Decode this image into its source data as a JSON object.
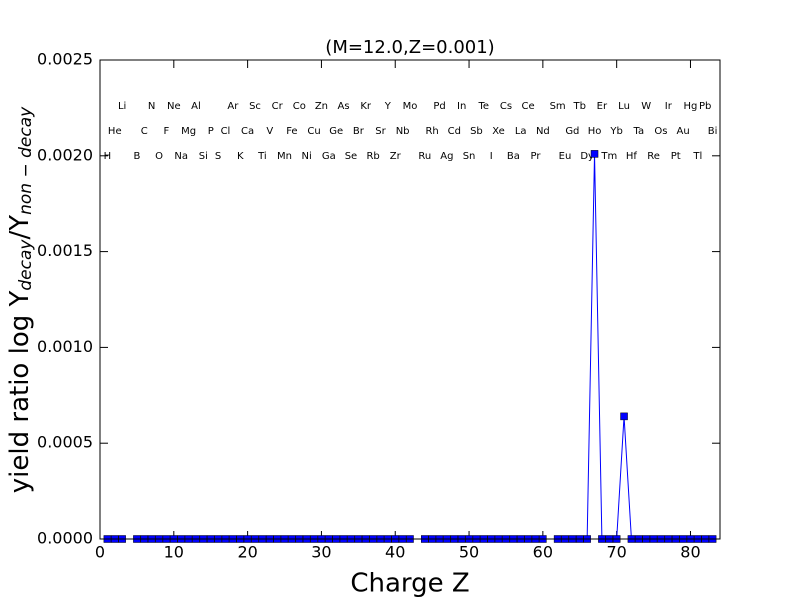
{
  "chart_data": {
    "type": "line",
    "title": "(M=12.0,Z=0.001)",
    "xlabel": "Charge Z",
    "ylabel": {
      "main": "yield ratio log Y",
      "sub1": "decay",
      "mid": "/Y",
      "sub2": "non − decay"
    },
    "x": [
      1,
      2,
      3,
      4,
      5,
      6,
      7,
      8,
      9,
      10,
      11,
      12,
      13,
      14,
      15,
      16,
      17,
      18,
      19,
      20,
      21,
      22,
      23,
      24,
      25,
      26,
      27,
      28,
      29,
      30,
      31,
      32,
      33,
      34,
      35,
      36,
      37,
      38,
      39,
      40,
      41,
      42,
      43,
      44,
      45,
      46,
      47,
      48,
      49,
      50,
      51,
      52,
      53,
      54,
      55,
      56,
      57,
      58,
      59,
      60,
      61,
      62,
      63,
      64,
      65,
      66,
      67,
      68,
      69,
      70,
      71,
      72,
      73,
      74,
      75,
      76,
      77,
      78,
      79,
      80,
      81,
      82,
      83
    ],
    "series": [
      {
        "color": "#0000ff",
        "values": [
          0,
          0,
          0,
          null,
          0,
          0,
          0,
          0,
          0,
          0,
          0,
          0,
          0,
          0,
          0,
          0,
          0,
          0,
          0,
          0,
          0,
          0,
          0,
          0,
          0,
          0,
          0,
          0,
          0,
          0,
          0,
          0,
          0,
          0,
          0,
          0,
          0,
          0,
          0,
          0,
          0,
          0,
          null,
          0,
          0,
          0,
          0,
          0,
          0,
          0,
          0,
          0,
          0,
          0,
          0,
          0,
          0,
          0,
          0,
          0,
          null,
          0,
          0,
          0,
          0,
          0,
          0.00201,
          0,
          0,
          0,
          0.00064,
          0,
          0,
          0,
          0,
          0,
          0,
          0,
          0,
          0,
          0,
          0,
          0
        ]
      }
    ],
    "xlim": [
      0,
      84
    ],
    "xticks": [
      0,
      10,
      20,
      30,
      40,
      50,
      60,
      70,
      80
    ],
    "ylim": [
      0,
      0.0025
    ],
    "yticks": [
      {
        "value": 0,
        "label": "0.0000"
      },
      {
        "value": 0.0005,
        "label": "0.0005"
      },
      {
        "value": 0.001,
        "label": "0.0010"
      },
      {
        "value": 0.0015,
        "label": "0.0015"
      },
      {
        "value": 0.002,
        "label": "0.0020"
      },
      {
        "value": 0.0025,
        "label": "0.0025"
      }
    ],
    "element_labels": [
      {
        "y": 0.00226,
        "labels": [
          {
            "text": "Li",
            "x": 3
          },
          {
            "text": "N",
            "x": 7
          },
          {
            "text": "Ne",
            "x": 10
          },
          {
            "text": "Al",
            "x": 13
          },
          {
            "text": "Ar",
            "x": 18
          },
          {
            "text": "Sc",
            "x": 21
          },
          {
            "text": "Cr",
            "x": 24
          },
          {
            "text": "Co",
            "x": 27
          },
          {
            "text": "Zn",
            "x": 30
          },
          {
            "text": "As",
            "x": 33
          },
          {
            "text": "Kr",
            "x": 36
          },
          {
            "text": "Y",
            "x": 39
          },
          {
            "text": "Mo",
            "x": 42
          },
          {
            "text": "Pd",
            "x": 46
          },
          {
            "text": "In",
            "x": 49
          },
          {
            "text": "Te",
            "x": 52
          },
          {
            "text": "Cs",
            "x": 55
          },
          {
            "text": "Ce",
            "x": 58
          },
          {
            "text": "Sm",
            "x": 62
          },
          {
            "text": "Tb",
            "x": 65
          },
          {
            "text": "Er",
            "x": 68
          },
          {
            "text": "Lu",
            "x": 71
          },
          {
            "text": "W",
            "x": 74
          },
          {
            "text": "Ir",
            "x": 77
          },
          {
            "text": "Hg",
            "x": 80
          },
          {
            "text": "Pb",
            "x": 82
          }
        ]
      },
      {
        "y": 0.00213,
        "labels": [
          {
            "text": "He",
            "x": 2
          },
          {
            "text": "C",
            "x": 6
          },
          {
            "text": "F",
            "x": 9
          },
          {
            "text": "Mg",
            "x": 12
          },
          {
            "text": "P",
            "x": 15
          },
          {
            "text": "Cl",
            "x": 17
          },
          {
            "text": "Ca",
            "x": 20
          },
          {
            "text": "V",
            "x": 23
          },
          {
            "text": "Fe",
            "x": 26
          },
          {
            "text": "Cu",
            "x": 29
          },
          {
            "text": "Ge",
            "x": 32
          },
          {
            "text": "Br",
            "x": 35
          },
          {
            "text": "Sr",
            "x": 38
          },
          {
            "text": "Nb",
            "x": 41
          },
          {
            "text": "Rh",
            "x": 45
          },
          {
            "text": "Cd",
            "x": 48
          },
          {
            "text": "Sb",
            "x": 51
          },
          {
            "text": "Xe",
            "x": 54
          },
          {
            "text": "La",
            "x": 57
          },
          {
            "text": "Nd",
            "x": 60
          },
          {
            "text": "Gd",
            "x": 64
          },
          {
            "text": "Ho",
            "x": 67
          },
          {
            "text": "Yb",
            "x": 70
          },
          {
            "text": "Ta",
            "x": 73
          },
          {
            "text": "Os",
            "x": 76
          },
          {
            "text": "Au",
            "x": 79
          },
          {
            "text": "Bi",
            "x": 83
          }
        ]
      },
      {
        "y": 0.002,
        "labels": [
          {
            "text": "H",
            "x": 1
          },
          {
            "text": "B",
            "x": 5
          },
          {
            "text": "O",
            "x": 8
          },
          {
            "text": "Na",
            "x": 11
          },
          {
            "text": "Si",
            "x": 14
          },
          {
            "text": "S",
            "x": 16
          },
          {
            "text": "K",
            "x": 19
          },
          {
            "text": "Ti",
            "x": 22
          },
          {
            "text": "Mn",
            "x": 25
          },
          {
            "text": "Ni",
            "x": 28
          },
          {
            "text": "Ga",
            "x": 31
          },
          {
            "text": "Se",
            "x": 34
          },
          {
            "text": "Rb",
            "x": 37
          },
          {
            "text": "Zr",
            "x": 40
          },
          {
            "text": "Ru",
            "x": 44
          },
          {
            "text": "Ag",
            "x": 47
          },
          {
            "text": "Sn",
            "x": 50
          },
          {
            "text": "I",
            "x": 53
          },
          {
            "text": "Ba",
            "x": 56
          },
          {
            "text": "Pr",
            "x": 59
          },
          {
            "text": "Eu",
            "x": 63
          },
          {
            "text": "Dy",
            "x": 66
          },
          {
            "text": "Tm",
            "x": 69
          },
          {
            "text": "Hf",
            "x": 72
          },
          {
            "text": "Re",
            "x": 75
          },
          {
            "text": "Pt",
            "x": 78
          },
          {
            "text": "Tl",
            "x": 81
          }
        ]
      }
    ]
  }
}
